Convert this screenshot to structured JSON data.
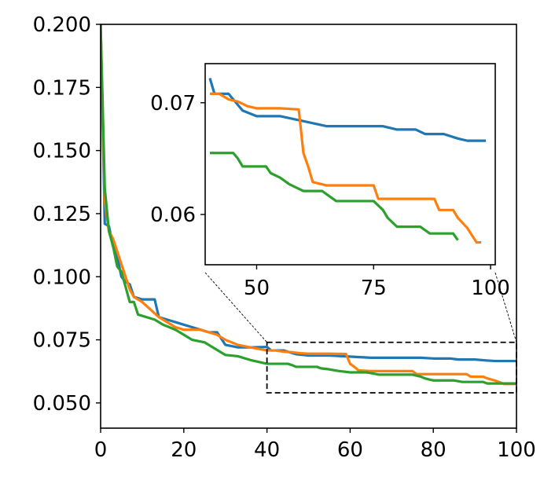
{
  "chart_data": {
    "type": "line",
    "title": "",
    "xlabel": "",
    "ylabel": "",
    "xlim": [
      0,
      100
    ],
    "ylim": [
      0.04,
      0.2
    ],
    "xticks": [
      "0",
      "20",
      "40",
      "60",
      "80",
      "100"
    ],
    "xtick_values": [
      0,
      20,
      40,
      60,
      80,
      100
    ],
    "yticks": [
      "0.050",
      "0.075",
      "0.100",
      "0.125",
      "0.150",
      "0.175",
      "0.200"
    ],
    "ytick_values": [
      0.05,
      0.075,
      0.1,
      0.125,
      0.15,
      0.175,
      0.2
    ],
    "grid": false,
    "legend": null,
    "colors": [
      "#1f77b4",
      "#ff7f0e",
      "#2ca02c"
    ],
    "series": [
      {
        "name": "series-blue",
        "color": "#1f77b4",
        "x": [
          0,
          1,
          2,
          3,
          4,
          5,
          6,
          7,
          8,
          10,
          11,
          13,
          14,
          16,
          18,
          20,
          22,
          24,
          26,
          28,
          30,
          33,
          36,
          40,
          41,
          44,
          45,
          47,
          50,
          55,
          65,
          70,
          77,
          80,
          84,
          86,
          88,
          90,
          93,
          95,
          99,
          100
        ],
        "y": [
          0.2,
          0.121,
          0.12,
          0.112,
          0.108,
          0.1,
          0.098,
          0.097,
          0.092,
          0.091,
          0.091,
          0.091,
          0.084,
          0.083,
          0.082,
          0.081,
          0.08,
          0.079,
          0.078,
          0.078,
          0.073,
          0.072,
          0.072,
          0.0722,
          0.0708,
          0.0708,
          0.0703,
          0.0693,
          0.0688,
          0.0688,
          0.0679,
          0.0679,
          0.0679,
          0.0676,
          0.0676,
          0.0672,
          0.0672,
          0.0672,
          0.0668,
          0.0666,
          0.0666,
          0.0666
        ]
      },
      {
        "name": "series-orange",
        "color": "#ff7f0e",
        "x": [
          0,
          1,
          2,
          3,
          4,
          5,
          6,
          7,
          8,
          10,
          12,
          14,
          16,
          18,
          20,
          22,
          24,
          26,
          28,
          30,
          33,
          36,
          40,
          42,
          44,
          46,
          48,
          50,
          55,
          59,
          60,
          61,
          62,
          65,
          70,
          75,
          76,
          80,
          88,
          89,
          92,
          93,
          95,
          97,
          98,
          100
        ],
        "y": [
          0.2,
          0.13,
          0.118,
          0.115,
          0.11,
          0.105,
          0.1,
          0.095,
          0.092,
          0.09,
          0.087,
          0.084,
          0.082,
          0.08,
          0.079,
          0.079,
          0.079,
          0.078,
          0.077,
          0.075,
          0.073,
          0.072,
          0.0708,
          0.0708,
          0.0703,
          0.0701,
          0.0697,
          0.0695,
          0.0695,
          0.0694,
          0.0655,
          0.0643,
          0.0629,
          0.0626,
          0.0626,
          0.0626,
          0.0614,
          0.0614,
          0.0614,
          0.0604,
          0.0604,
          0.0597,
          0.0588,
          0.0575,
          0.0575,
          0.0575
        ]
      },
      {
        "name": "series-green",
        "color": "#2ca02c",
        "x": [
          0,
          1,
          2,
          3,
          4,
          5,
          6,
          7,
          8,
          9,
          11,
          13,
          15,
          18,
          20,
          22,
          25,
          27,
          30,
          33,
          36,
          40,
          45,
          46,
          47,
          52,
          53,
          55,
          57,
          60,
          64,
          65,
          67,
          68,
          75,
          77,
          78,
          80,
          85,
          87,
          88,
          92,
          93,
          100
        ],
        "y": [
          0.2,
          0.135,
          0.118,
          0.112,
          0.104,
          0.102,
          0.096,
          0.09,
          0.09,
          0.085,
          0.084,
          0.083,
          0.081,
          0.079,
          0.077,
          0.075,
          0.074,
          0.072,
          0.069,
          0.0685,
          0.067,
          0.0655,
          0.0655,
          0.065,
          0.0643,
          0.0643,
          0.0637,
          0.0633,
          0.0627,
          0.0621,
          0.0621,
          0.0618,
          0.0612,
          0.0612,
          0.0612,
          0.0604,
          0.0597,
          0.0589,
          0.0589,
          0.0583,
          0.0583,
          0.0583,
          0.0577,
          0.0577
        ]
      }
    ],
    "inset": {
      "xlim": [
        39,
        101
      ],
      "ylim": [
        0.0555,
        0.0735
      ],
      "xticks": [
        "50",
        "75",
        "100"
      ],
      "xtick_values": [
        50,
        75,
        100
      ],
      "yticks": [
        "0.06",
        "0.07"
      ],
      "ytick_values": [
        0.06,
        0.07
      ],
      "zoom_region": {
        "x": [
          40,
          100
        ],
        "y": [
          0.054,
          0.074
        ]
      }
    }
  }
}
